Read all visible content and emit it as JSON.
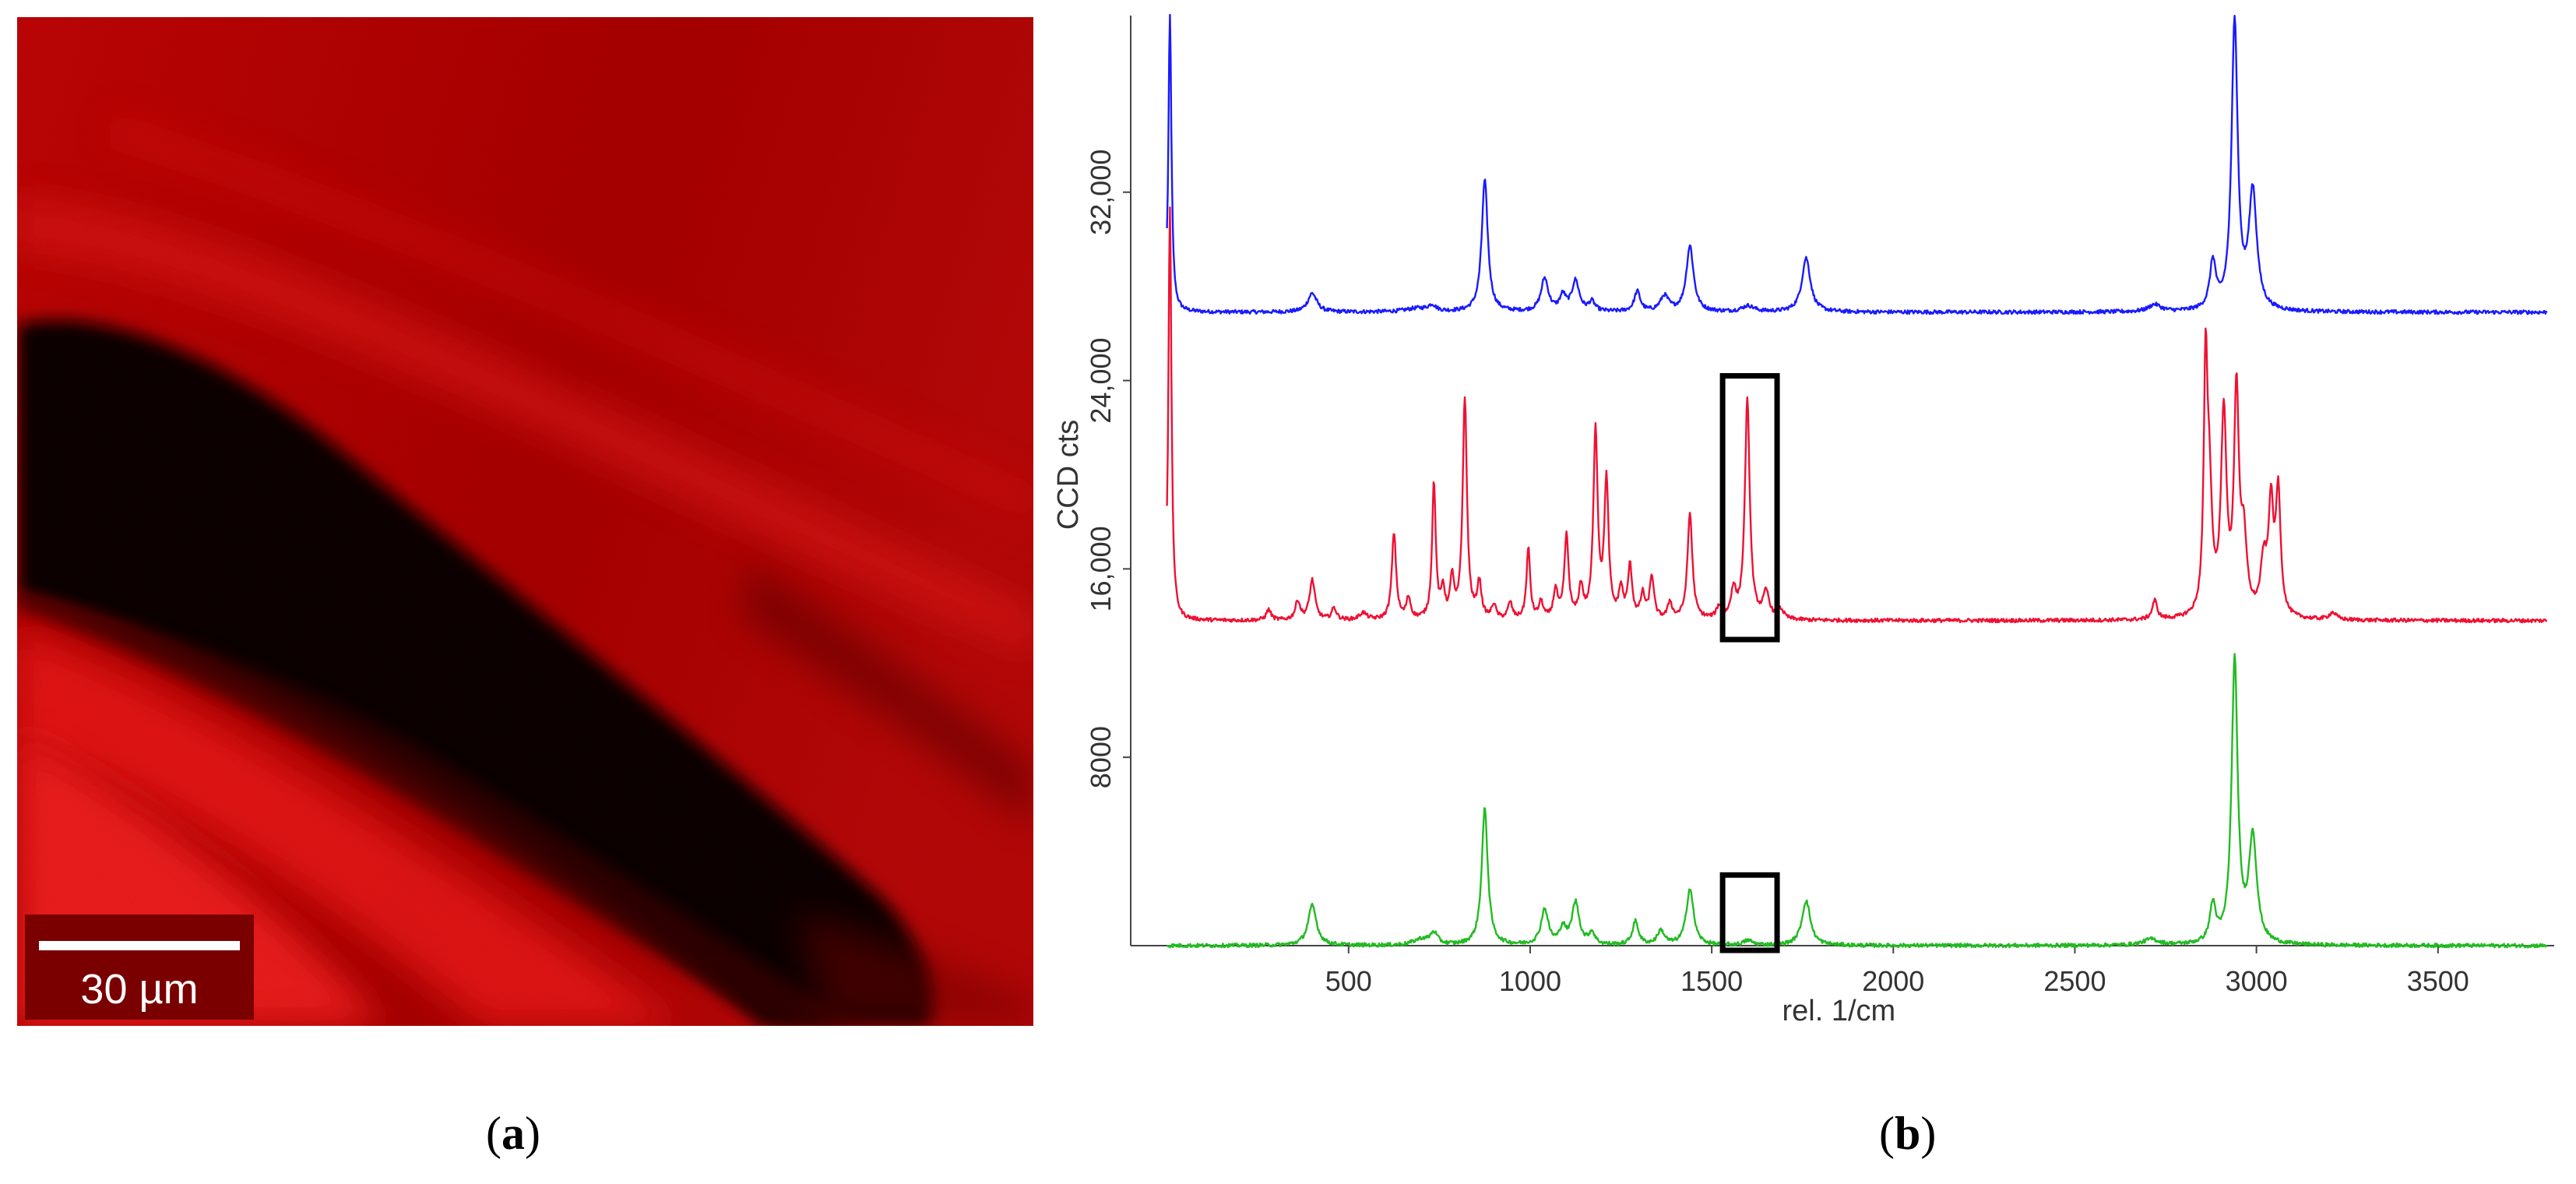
{
  "panel_a": {
    "scale_bar_label": "30 µm",
    "caption_label": "a",
    "colors": {
      "tissue": "#d40000",
      "dark": "#0a0000",
      "scale_bg": "#7a0000"
    }
  },
  "panel_b": {
    "caption_label": "b"
  },
  "chart_data": {
    "type": "line",
    "xlabel": "rel. 1/cm",
    "ylabel": "CCD cts",
    "xlim": [
      -100,
      3820
    ],
    "ylim": [
      0,
      39500
    ],
    "x_ticks": [
      500,
      1000,
      1500,
      2000,
      2500,
      3000,
      3500
    ],
    "x_tick_labels": [
      "500",
      "1000",
      "1500",
      "2000",
      "2500",
      "3000",
      "3500"
    ],
    "y_ticks": [
      8000,
      16000,
      24000,
      32000
    ],
    "y_tick_labels": [
      "8000",
      "16,000",
      "24,000",
      "32,000"
    ],
    "grid": false,
    "highlight_boxes": [
      {
        "x_range": [
          1530,
          1680
        ],
        "y_range": [
          13000,
          24200
        ]
      },
      {
        "x_range": [
          1530,
          1680
        ],
        "y_range": [
          -200,
          3000
        ]
      }
    ],
    "series": [
      {
        "color": "#1a1aff",
        "baseline": 26900,
        "peaks": [
          [
            8,
            12600,
            5
          ],
          [
            400,
            800,
            15
          ],
          [
            690,
            150,
            40
          ],
          [
            730,
            250,
            12
          ],
          [
            875,
            5600,
            10
          ],
          [
            1040,
            1400,
            12
          ],
          [
            1090,
            650,
            10
          ],
          [
            1125,
            1300,
            12
          ],
          [
            1170,
            400,
            10
          ],
          [
            1295,
            850,
            10
          ],
          [
            1370,
            650,
            14
          ],
          [
            1440,
            2800,
            12
          ],
          [
            1600,
            250,
            20
          ],
          [
            1760,
            2300,
            14
          ],
          [
            2720,
            300,
            20
          ],
          [
            2880,
            2000,
            10
          ],
          [
            2940,
            12300,
            10
          ],
          [
            2990,
            5000,
            13
          ]
        ]
      },
      {
        "color": "#ee1133",
        "baseline": 13800,
        "peaks": [
          [
            8,
            17500,
            5
          ],
          [
            280,
            450,
            8
          ],
          [
            360,
            800,
            8
          ],
          [
            400,
            1700,
            9
          ],
          [
            460,
            500,
            8
          ],
          [
            540,
            300,
            12
          ],
          [
            625,
            3700,
            7
          ],
          [
            665,
            900,
            7
          ],
          [
            735,
            5800,
            6
          ],
          [
            760,
            1200,
            6
          ],
          [
            785,
            1700,
            6
          ],
          [
            820,
            9400,
            7
          ],
          [
            860,
            1500,
            7
          ],
          [
            900,
            600,
            7
          ],
          [
            945,
            700,
            7
          ],
          [
            995,
            3000,
            6
          ],
          [
            1030,
            700,
            7
          ],
          [
            1070,
            1200,
            7
          ],
          [
            1100,
            3500,
            7
          ],
          [
            1140,
            1300,
            7
          ],
          [
            1180,
            8000,
            7
          ],
          [
            1210,
            5800,
            7
          ],
          [
            1250,
            1200,
            7
          ],
          [
            1275,
            2200,
            7
          ],
          [
            1310,
            1000,
            7
          ],
          [
            1335,
            1800,
            7
          ],
          [
            1385,
            700,
            7
          ],
          [
            1440,
            4500,
            8
          ],
          [
            1520,
            500,
            8
          ],
          [
            1560,
            1200,
            8
          ],
          [
            1598,
            9300,
            8
          ],
          [
            1650,
            1100,
            10
          ],
          [
            1690,
            400,
            10
          ],
          [
            2720,
            800,
            8
          ],
          [
            2870,
            5000,
            9
          ],
          [
            2860,
            9800,
            6
          ],
          [
            2910,
            8500,
            9
          ],
          [
            2945,
            9300,
            8
          ],
          [
            2965,
            3000,
            10
          ],
          [
            3020,
            2200,
            10
          ],
          [
            3040,
            4500,
            8
          ],
          [
            3060,
            5200,
            8
          ],
          [
            3210,
            300,
            12
          ]
        ]
      },
      {
        "color": "#22bb22",
        "baseline": 0,
        "peaks": [
          [
            400,
            1700,
            14
          ],
          [
            700,
            250,
            25
          ],
          [
            735,
            500,
            12
          ],
          [
            875,
            5800,
            10
          ],
          [
            1040,
            1500,
            12
          ],
          [
            1090,
            700,
            10
          ],
          [
            1125,
            1800,
            12
          ],
          [
            1170,
            500,
            10
          ],
          [
            1290,
            1000,
            10
          ],
          [
            1360,
            600,
            12
          ],
          [
            1440,
            2400,
            12
          ],
          [
            1600,
            200,
            15
          ],
          [
            1760,
            1900,
            14
          ],
          [
            2710,
            250,
            25
          ],
          [
            2880,
            1600,
            10
          ],
          [
            2940,
            12000,
            10
          ],
          [
            2990,
            4500,
            13
          ]
        ]
      }
    ]
  }
}
